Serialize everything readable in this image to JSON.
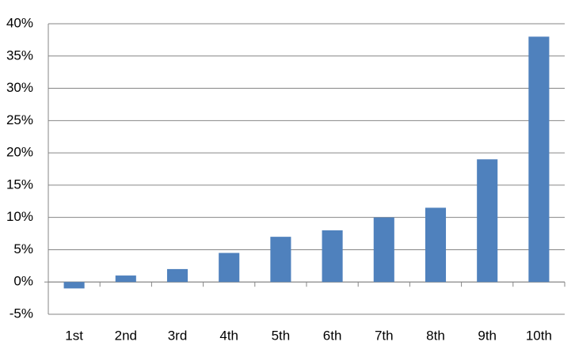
{
  "chart_data": {
    "type": "bar",
    "categories": [
      "1st",
      "2nd",
      "3rd",
      "4th",
      "5th",
      "6th",
      "7th",
      "8th",
      "9th",
      "10th"
    ],
    "values": [
      -1,
      1,
      2,
      4.5,
      7,
      8,
      10,
      11.5,
      19,
      38
    ],
    "color": "#4f81bd",
    "ylim": [
      -5,
      40
    ],
    "yticks": [
      {
        "value": -5,
        "label": "-5%"
      },
      {
        "value": 0,
        "label": "0%"
      },
      {
        "value": 5,
        "label": "5%"
      },
      {
        "value": 10,
        "label": "10%"
      },
      {
        "value": 15,
        "label": "15%"
      },
      {
        "value": 20,
        "label": "20%"
      },
      {
        "value": 25,
        "label": "25%"
      },
      {
        "value": 30,
        "label": "30%"
      },
      {
        "value": 35,
        "label": "35%"
      },
      {
        "value": 40,
        "label": "40%"
      }
    ],
    "grid": true
  }
}
